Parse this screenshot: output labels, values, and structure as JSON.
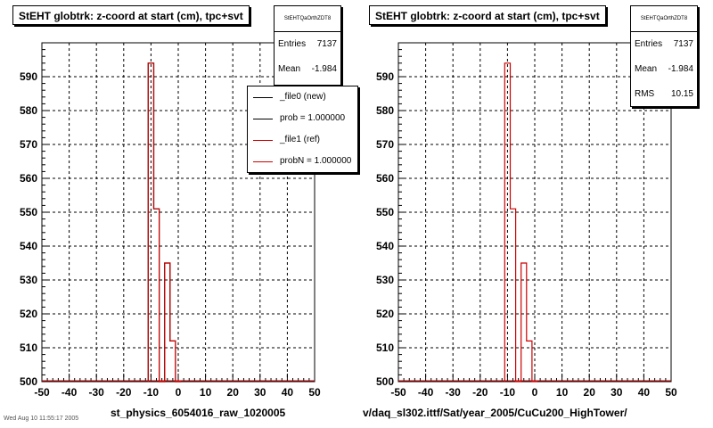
{
  "corner_text": "Wed Aug 10 11:55:17 2005",
  "panels": [
    {
      "title": "StEHT globtrk: z-coord at start (cm), tpc+svt",
      "stats": {
        "name": "StEHTQaOrthZDT8",
        "entries_label": "Entries",
        "entries": "7137",
        "mean_label": "Mean",
        "mean": "-1.984"
      },
      "legend": [
        {
          "label": "_file0 (new)",
          "color": "#000000"
        },
        {
          "label": "prob = 1.000000",
          "color": "#000000"
        },
        {
          "label": "_file1 (ref)",
          "color": "#cc0000"
        },
        {
          "label": "probN = 1.000000",
          "color": "#cc0000"
        }
      ],
      "xtitle": "st_physics_6054016_raw_1020005"
    },
    {
      "title": "StEHT globtrk: z-coord at start (cm), tpc+svt",
      "stats": {
        "name": "StEHTQaOrthZDT8",
        "entries_label": "Entries",
        "entries": "7137",
        "mean_label": "Mean",
        "mean": "-1.984",
        "rms_label": "RMS",
        "rms": "10.15"
      },
      "xtitle": "v/daq_sl302.ittf/Sat/year_2005/CuCu200_HighTower/"
    }
  ],
  "chart_data": [
    {
      "type": "histogram",
      "title": "StEHT globtrk: z-coord at start (cm), tpc+svt",
      "xlabel": "st_physics_6054016_raw_1020005",
      "xlim": [
        -50,
        50
      ],
      "ylim": [
        500,
        600
      ],
      "xticks": [
        "-50",
        "-40",
        "-30",
        "-20",
        "-10",
        "0",
        "10",
        "20",
        "30",
        "40",
        "50"
      ],
      "yticks": [
        "500",
        "510",
        "520",
        "530",
        "540",
        "550",
        "560",
        "570",
        "580",
        "590"
      ],
      "grid": true,
      "legend_position": "top-right",
      "bins": [
        -11,
        -9,
        -7,
        -5,
        -3,
        -1
      ],
      "series": [
        {
          "name": "_file0 (new)",
          "color": "#000000",
          "values": [
            594,
            551,
            500,
            535,
            512,
            500
          ]
        },
        {
          "name": "_file1 (ref)",
          "color": "#cc0000",
          "values": [
            594,
            551,
            500,
            535,
            512,
            500
          ]
        }
      ]
    },
    {
      "type": "histogram",
      "title": "StEHT globtrk: z-coord at start (cm), tpc+svt",
      "xlabel": "v/daq_sl302.ittf/Sat/year_2005/CuCu200_HighTower/",
      "xlim": [
        -50,
        50
      ],
      "ylim": [
        500,
        600
      ],
      "xticks": [
        "-50",
        "-40",
        "-30",
        "-20",
        "-10",
        "0",
        "10",
        "20",
        "30",
        "40",
        "50"
      ],
      "yticks": [
        "500",
        "510",
        "520",
        "530",
        "540",
        "550",
        "560",
        "570",
        "580",
        "590"
      ],
      "grid": true,
      "bins": [
        -11,
        -9,
        -7,
        -5,
        -3,
        -1
      ],
      "series": [
        {
          "color": "#cc0000",
          "values": [
            594,
            551,
            500,
            535,
            512,
            500
          ]
        }
      ]
    }
  ]
}
